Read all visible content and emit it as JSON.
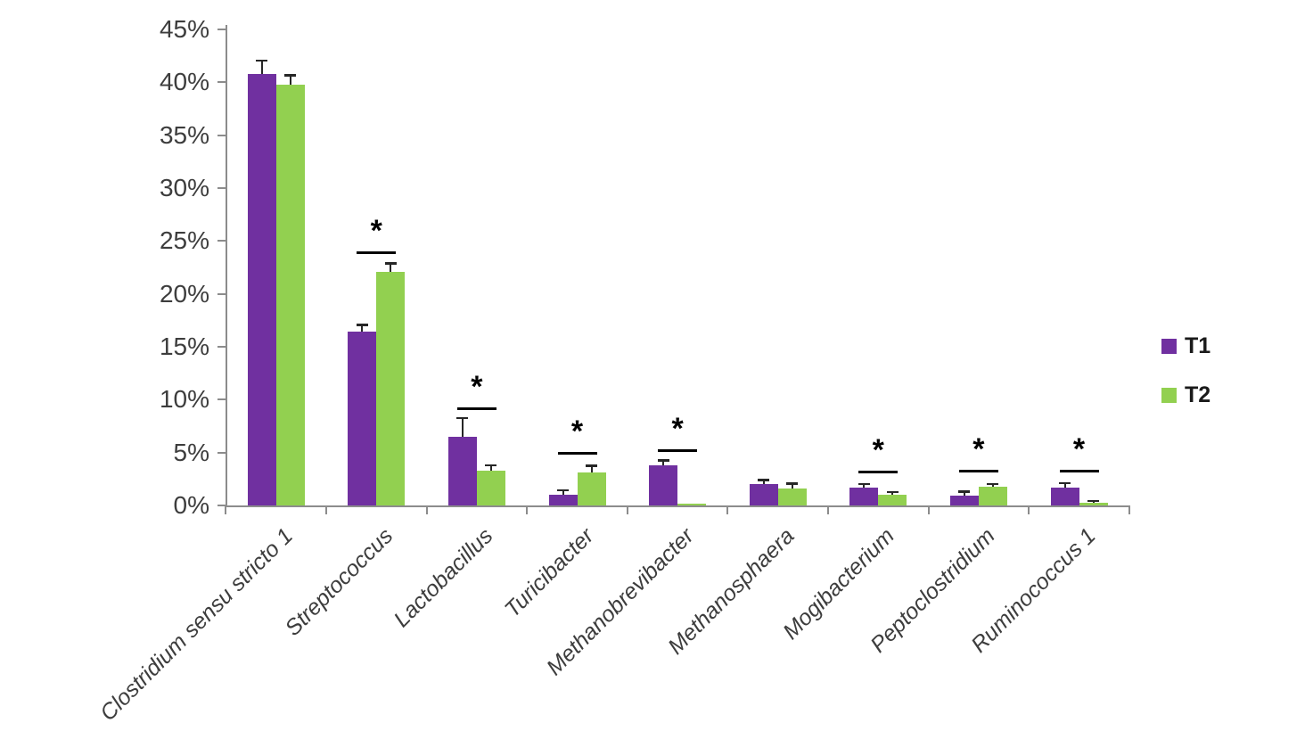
{
  "chart_data": {
    "type": "bar",
    "title": "",
    "xlabel": "",
    "ylabel": "",
    "categories": [
      "Clostridium sensu stricto 1",
      "Streptococcus",
      "Lactobacillus",
      "Turicibacter",
      "Methanobrevibacter",
      "Methanosphaera",
      "Mogibacterium",
      "Peptoclostridium",
      "Ruminococcus 1"
    ],
    "series": [
      {
        "name": "T1",
        "color": "#7030A0",
        "values": [
          40.8,
          16.4,
          6.5,
          1.0,
          3.8,
          2.0,
          1.7,
          0.9,
          1.7
        ],
        "errors_up": [
          1.2,
          0.6,
          1.7,
          0.35,
          0.4,
          0.35,
          0.25,
          0.35,
          0.35
        ]
      },
      {
        "name": "T2",
        "color": "#92D050",
        "values": [
          39.8,
          22.1,
          3.3,
          3.1,
          0.15,
          1.6,
          1.0,
          1.75,
          0.25
        ],
        "errors_up": [
          0.8,
          0.7,
          0.45,
          0.6,
          0,
          0.4,
          0.2,
          0.2,
          0.1
        ]
      }
    ],
    "significance_marker": "*",
    "sig_line_pct": [
      null,
      24.0,
      9.3,
      5.05,
      5.3,
      null,
      3.3,
      3.4,
      3.4
    ],
    "ylim": [
      0,
      45
    ],
    "ytick_step": 5,
    "ytick_suffix": "%",
    "grid": false,
    "legend_position": "right",
    "error_bar_direction": "plus",
    "category_label_style": "italic, rotated 45deg"
  }
}
